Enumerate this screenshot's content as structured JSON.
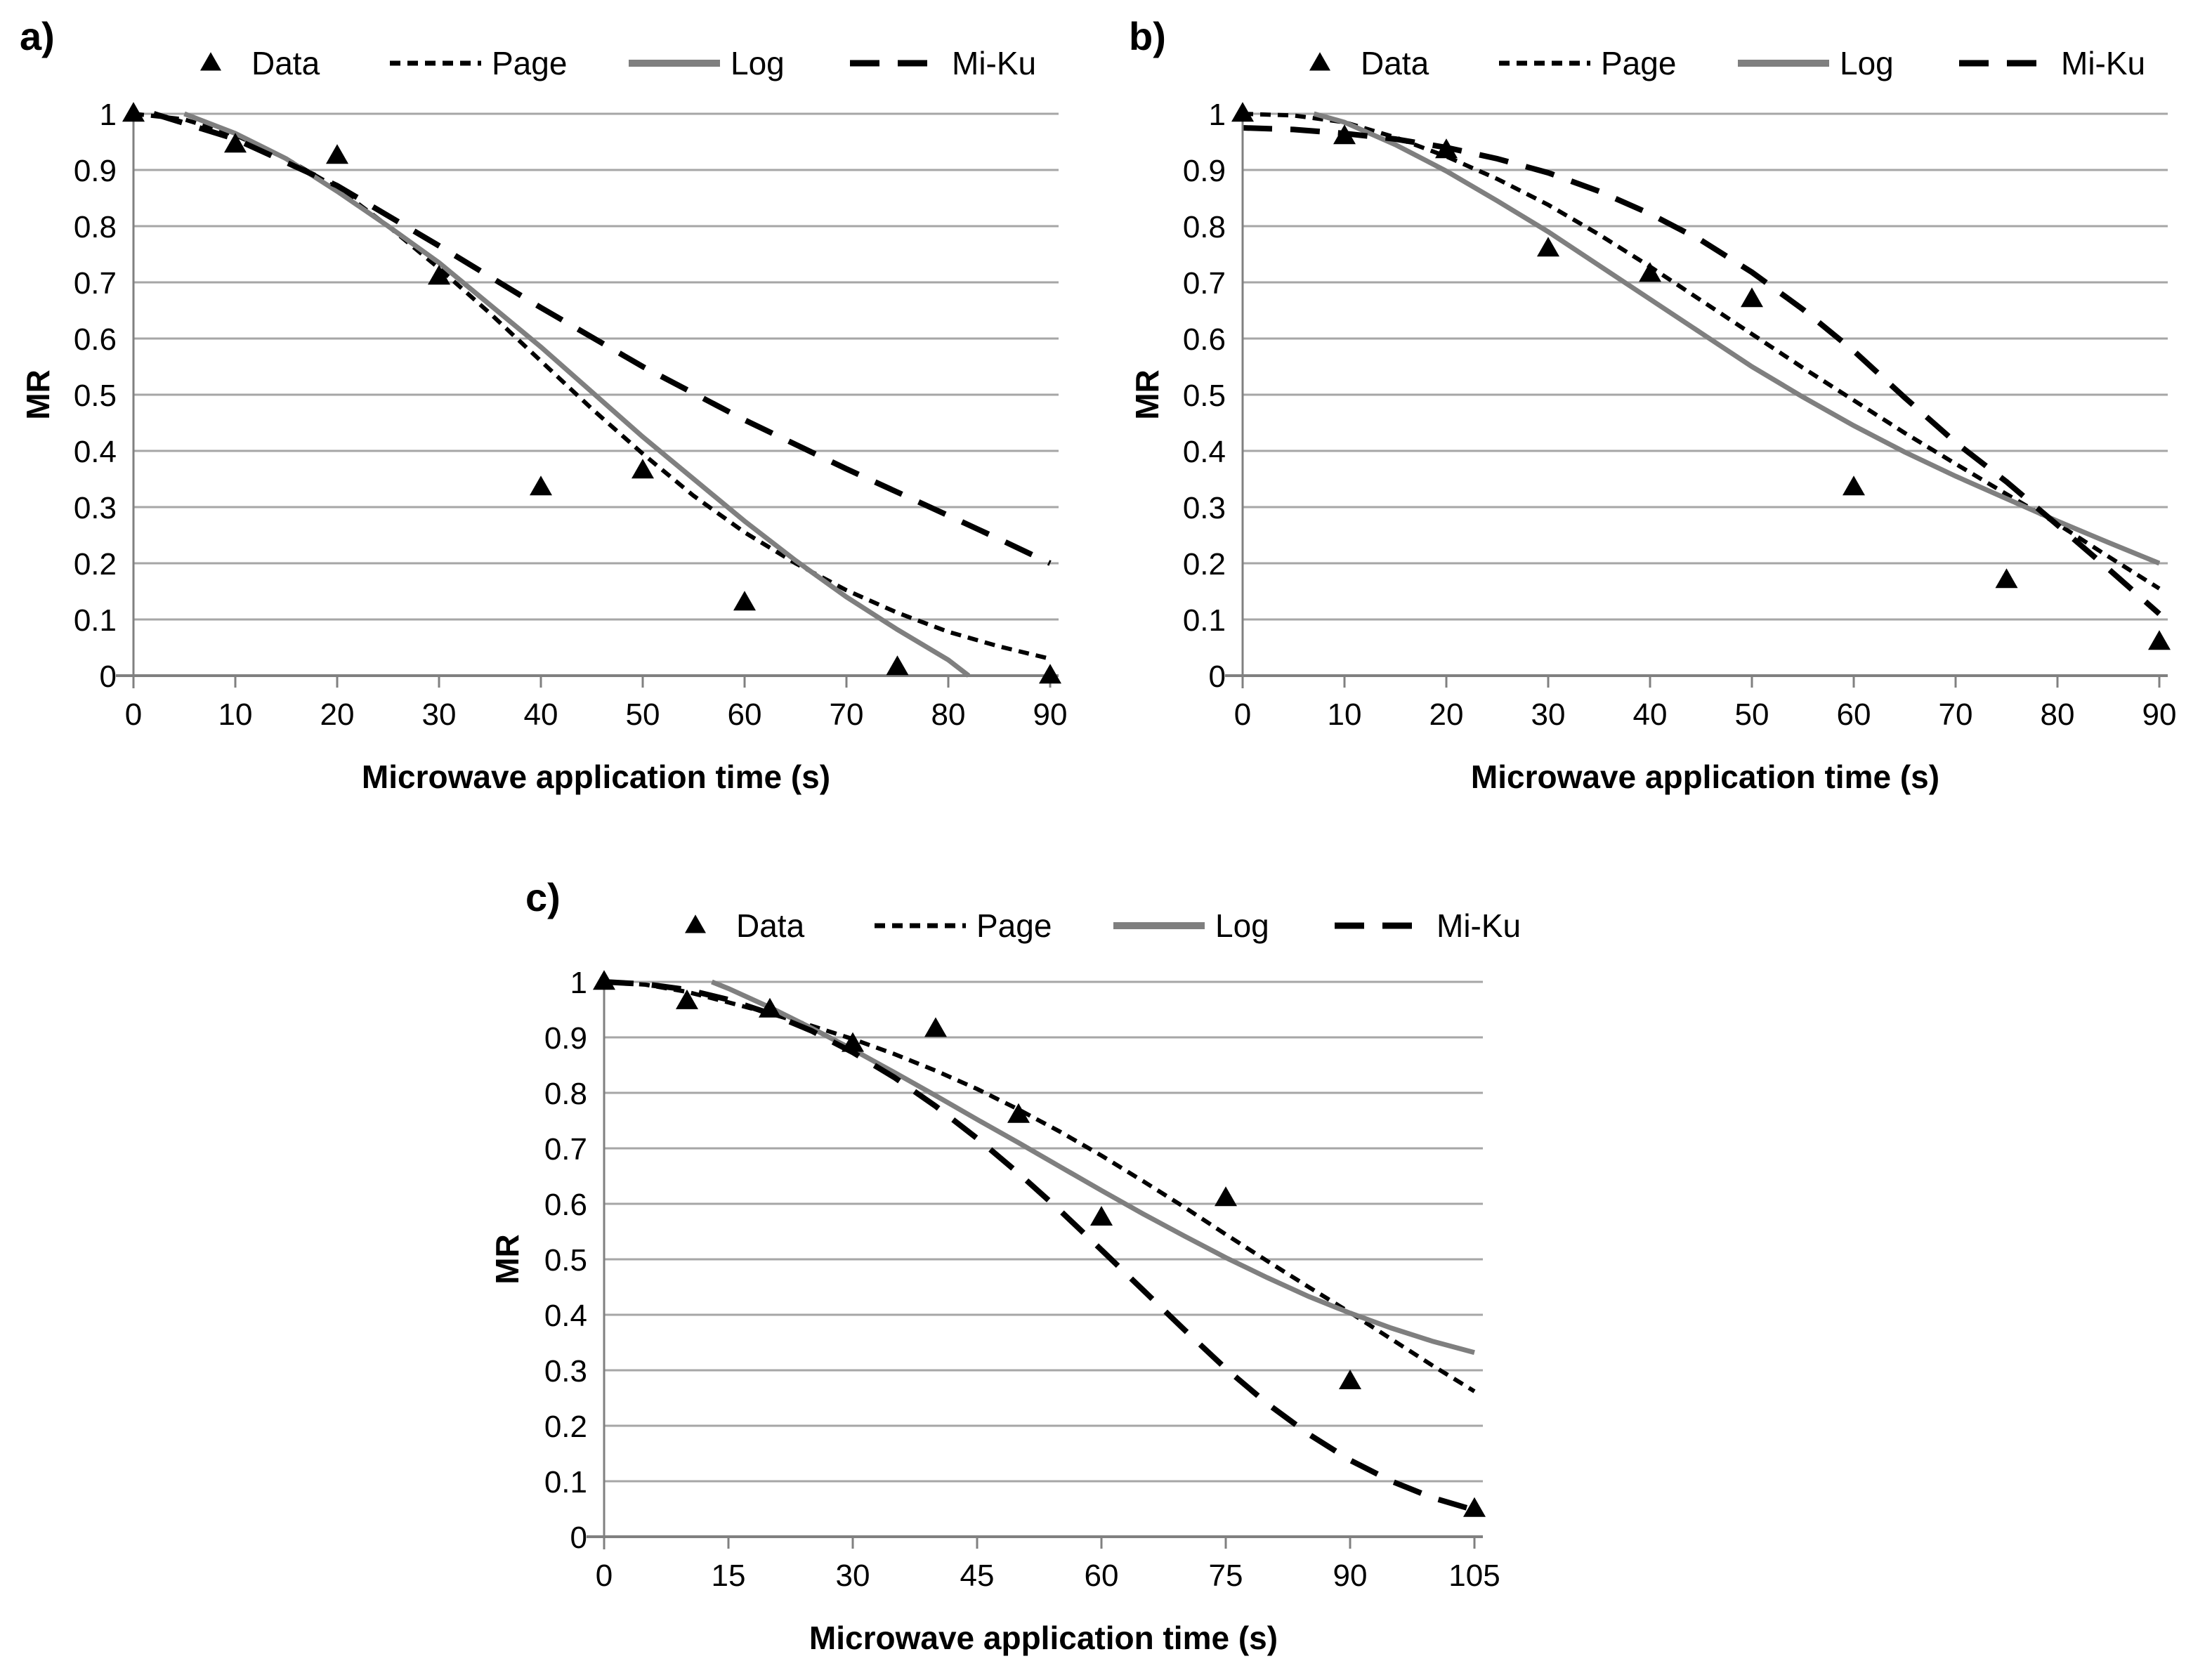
{
  "figure_background": "#ffffff",
  "colors": {
    "data_marker": "#000000",
    "page_line": "#000000",
    "log_line": "#7f7f7f",
    "miku_line": "#000000",
    "gridline": "#a6a6a6",
    "axis": "#808080",
    "text": "#000000"
  },
  "chart_data": [
    {
      "id": "a",
      "panel_label": "a)",
      "type": "scatter",
      "xlabel": "Microwave application time (s)",
      "ylabel": "MR",
      "xlim": [
        0,
        90
      ],
      "ylim": [
        0,
        1
      ],
      "x_ticks": [
        0,
        10,
        20,
        30,
        40,
        50,
        60,
        70,
        80,
        90
      ],
      "y_ticks": [
        "1",
        "0.9",
        "0.8",
        "0.7",
        "0.6",
        "0.5",
        "0.4",
        "0.3",
        "0.2",
        "0.1",
        "0"
      ],
      "grid": "horizontal",
      "legend_position": "top",
      "legend": [
        {
          "label": "Data",
          "marker": "triangle",
          "color": "#000000"
        },
        {
          "label": "Page",
          "style": "dash-short",
          "color": "#000000"
        },
        {
          "label": "Log",
          "style": "solid",
          "color": "#7f7f7f"
        },
        {
          "label": "Mi-Ku",
          "style": "dash-long",
          "color": "#000000"
        }
      ],
      "data_points": {
        "name": "Data",
        "points": [
          [
            0,
            1.0
          ],
          [
            10,
            0.945
          ],
          [
            20,
            0.925
          ],
          [
            30,
            0.71
          ],
          [
            40,
            0.335
          ],
          [
            50,
            0.365
          ],
          [
            60,
            0.13
          ],
          [
            75,
            0.015
          ],
          [
            90,
            0.0
          ]
        ]
      },
      "series": [
        {
          "name": "Page",
          "style": "dash-short",
          "color": "#000000",
          "points": [
            [
              0,
              1.0
            ],
            [
              5,
              0.99
            ],
            [
              10,
              0.962
            ],
            [
              15,
              0.92
            ],
            [
              20,
              0.868
            ],
            [
              25,
              0.8
            ],
            [
              30,
              0.725
            ],
            [
              35,
              0.645
            ],
            [
              40,
              0.56
            ],
            [
              45,
              0.475
            ],
            [
              50,
              0.395
            ],
            [
              55,
              0.32
            ],
            [
              60,
              0.255
            ],
            [
              65,
              0.2
            ],
            [
              70,
              0.152
            ],
            [
              75,
              0.112
            ],
            [
              80,
              0.078
            ],
            [
              85,
              0.052
            ],
            [
              90,
              0.03
            ]
          ]
        },
        {
          "name": "Log",
          "style": "solid",
          "color": "#7f7f7f",
          "points": [
            [
              5,
              1.0
            ],
            [
              10,
              0.965
            ],
            [
              15,
              0.92
            ],
            [
              20,
              0.862
            ],
            [
              25,
              0.8
            ],
            [
              30,
              0.735
            ],
            [
              35,
              0.66
            ],
            [
              40,
              0.585
            ],
            [
              45,
              0.505
            ],
            [
              50,
              0.425
            ],
            [
              55,
              0.35
            ],
            [
              60,
              0.275
            ],
            [
              65,
              0.205
            ],
            [
              70,
              0.14
            ],
            [
              75,
              0.082
            ],
            [
              80,
              0.028
            ],
            [
              82,
              0.0
            ]
          ]
        },
        {
          "name": "Mi-Ku",
          "style": "dash-long",
          "color": "#000000",
          "points": [
            [
              2,
              1.0
            ],
            [
              10,
              0.955
            ],
            [
              20,
              0.872
            ],
            [
              30,
              0.765
            ],
            [
              40,
              0.655
            ],
            [
              50,
              0.55
            ],
            [
              60,
              0.455
            ],
            [
              70,
              0.368
            ],
            [
              80,
              0.285
            ],
            [
              85,
              0.243
            ],
            [
              90,
              0.2
            ]
          ]
        }
      ]
    },
    {
      "id": "b",
      "panel_label": "b)",
      "type": "scatter",
      "xlabel": "Microwave application time (s)",
      "ylabel": "MR",
      "xlim": [
        0,
        90
      ],
      "ylim": [
        0,
        1
      ],
      "x_ticks": [
        0,
        10,
        20,
        30,
        40,
        50,
        60,
        70,
        80,
        90
      ],
      "y_ticks": [
        "1",
        "0.9",
        "0.8",
        "0.7",
        "0.6",
        "0.5",
        "0.4",
        "0.3",
        "0.2",
        "0.1",
        "0"
      ],
      "grid": "horizontal",
      "legend_position": "top",
      "legend": [
        {
          "label": "Data",
          "marker": "triangle",
          "color": "#000000"
        },
        {
          "label": "Page",
          "style": "dash-short",
          "color": "#000000"
        },
        {
          "label": "Log",
          "style": "solid",
          "color": "#7f7f7f"
        },
        {
          "label": "Mi-Ku",
          "style": "dash-long",
          "color": "#000000"
        }
      ],
      "data_points": {
        "name": "Data",
        "points": [
          [
            0,
            1.0
          ],
          [
            10,
            0.96
          ],
          [
            20,
            0.935
          ],
          [
            30,
            0.76
          ],
          [
            40,
            0.715
          ],
          [
            50,
            0.67
          ],
          [
            60,
            0.335
          ],
          [
            75,
            0.17
          ],
          [
            90,
            0.06
          ]
        ]
      },
      "series": [
        {
          "name": "Page",
          "style": "dash-short",
          "color": "#000000",
          "points": [
            [
              0,
              1.0
            ],
            [
              5,
              0.997
            ],
            [
              10,
              0.985
            ],
            [
              15,
              0.958
            ],
            [
              20,
              0.924
            ],
            [
              25,
              0.884
            ],
            [
              30,
              0.838
            ],
            [
              35,
              0.785
            ],
            [
              40,
              0.728
            ],
            [
              45,
              0.668
            ],
            [
              50,
              0.608
            ],
            [
              55,
              0.548
            ],
            [
              60,
              0.49
            ],
            [
              65,
              0.432
            ],
            [
              70,
              0.377
            ],
            [
              75,
              0.323
            ],
            [
              80,
              0.27
            ],
            [
              85,
              0.212
            ],
            [
              90,
              0.155
            ]
          ]
        },
        {
          "name": "Log",
          "style": "solid",
          "color": "#7f7f7f",
          "points": [
            [
              7,
              1.0
            ],
            [
              10,
              0.985
            ],
            [
              15,
              0.945
            ],
            [
              20,
              0.898
            ],
            [
              25,
              0.845
            ],
            [
              30,
              0.79
            ],
            [
              35,
              0.73
            ],
            [
              40,
              0.67
            ],
            [
              45,
              0.61
            ],
            [
              50,
              0.55
            ],
            [
              55,
              0.496
            ],
            [
              60,
              0.445
            ],
            [
              65,
              0.398
            ],
            [
              70,
              0.355
            ],
            [
              75,
              0.315
            ],
            [
              80,
              0.275
            ],
            [
              85,
              0.237
            ],
            [
              90,
              0.2
            ]
          ]
        },
        {
          "name": "Mi-Ku",
          "style": "dash-long",
          "color": "#000000",
          "points": [
            [
              0,
              0.975
            ],
            [
              5,
              0.972
            ],
            [
              10,
              0.965
            ],
            [
              15,
              0.955
            ],
            [
              20,
              0.94
            ],
            [
              25,
              0.92
            ],
            [
              30,
              0.895
            ],
            [
              35,
              0.862
            ],
            [
              40,
              0.822
            ],
            [
              45,
              0.775
            ],
            [
              50,
              0.718
            ],
            [
              55,
              0.652
            ],
            [
              60,
              0.578
            ],
            [
              65,
              0.495
            ],
            [
              70,
              0.415
            ],
            [
              75,
              0.345
            ],
            [
              80,
              0.268
            ],
            [
              85,
              0.19
            ],
            [
              90,
              0.11
            ]
          ]
        }
      ]
    },
    {
      "id": "c",
      "panel_label": "c)",
      "type": "scatter",
      "xlabel": "Microwave application time (s)",
      "ylabel": "MR",
      "xlim": [
        0,
        105
      ],
      "ylim": [
        0,
        1
      ],
      "x_ticks": [
        0,
        15,
        30,
        45,
        60,
        75,
        90,
        105
      ],
      "y_ticks": [
        "1",
        "0.9",
        "0.8",
        "0.7",
        "0.6",
        "0.5",
        "0.4",
        "0.3",
        "0.2",
        "0.1",
        "0"
      ],
      "grid": "horizontal",
      "legend_position": "top",
      "legend": [
        {
          "label": "Data",
          "marker": "triangle",
          "color": "#000000"
        },
        {
          "label": "Page",
          "style": "dash-short",
          "color": "#000000"
        },
        {
          "label": "Log",
          "style": "solid",
          "color": "#7f7f7f"
        },
        {
          "label": "Mi-Ku",
          "style": "dash-long",
          "color": "#000000"
        }
      ],
      "data_points": {
        "name": "Data",
        "points": [
          [
            0,
            1.0
          ],
          [
            10,
            0.965
          ],
          [
            20,
            0.95
          ],
          [
            30,
            0.888
          ],
          [
            40,
            0.915
          ],
          [
            50,
            0.76
          ],
          [
            60,
            0.575
          ],
          [
            75,
            0.61
          ],
          [
            90,
            0.28
          ],
          [
            105,
            0.05
          ]
        ]
      },
      "series": [
        {
          "name": "Page",
          "style": "dash-short",
          "color": "#000000",
          "points": [
            [
              0,
              1.0
            ],
            [
              5,
              0.995
            ],
            [
              10,
              0.982
            ],
            [
              15,
              0.963
            ],
            [
              20,
              0.943
            ],
            [
              25,
              0.921
            ],
            [
              30,
              0.897
            ],
            [
              35,
              0.87
            ],
            [
              40,
              0.84
            ],
            [
              45,
              0.807
            ],
            [
              50,
              0.77
            ],
            [
              55,
              0.73
            ],
            [
              60,
              0.687
            ],
            [
              65,
              0.641
            ],
            [
              70,
              0.594
            ],
            [
              75,
              0.545
            ],
            [
              80,
              0.497
            ],
            [
              85,
              0.45
            ],
            [
              90,
              0.404
            ],
            [
              95,
              0.356
            ],
            [
              100,
              0.308
            ],
            [
              105,
              0.262
            ]
          ]
        },
        {
          "name": "Log",
          "style": "solid",
          "color": "#7f7f7f",
          "points": [
            [
              13,
              1.0
            ],
            [
              15,
              0.988
            ],
            [
              20,
              0.954
            ],
            [
              25,
              0.917
            ],
            [
              30,
              0.878
            ],
            [
              35,
              0.837
            ],
            [
              40,
              0.795
            ],
            [
              45,
              0.752
            ],
            [
              50,
              0.71
            ],
            [
              55,
              0.667
            ],
            [
              60,
              0.624
            ],
            [
              65,
              0.582
            ],
            [
              70,
              0.542
            ],
            [
              75,
              0.503
            ],
            [
              80,
              0.467
            ],
            [
              85,
              0.433
            ],
            [
              90,
              0.403
            ],
            [
              95,
              0.376
            ],
            [
              100,
              0.352
            ],
            [
              105,
              0.332
            ]
          ]
        },
        {
          "name": "Mi-Ku",
          "style": "dash-long",
          "color": "#000000",
          "points": [
            [
              0,
              1.0
            ],
            [
              5,
              0.996
            ],
            [
              10,
              0.986
            ],
            [
              15,
              0.968
            ],
            [
              20,
              0.943
            ],
            [
              25,
              0.912
            ],
            [
              30,
              0.873
            ],
            [
              35,
              0.828
            ],
            [
              40,
              0.776
            ],
            [
              45,
              0.718
            ],
            [
              50,
              0.655
            ],
            [
              55,
              0.588
            ],
            [
              60,
              0.517
            ],
            [
              65,
              0.445
            ],
            [
              70,
              0.373
            ],
            [
              75,
              0.303
            ],
            [
              80,
              0.24
            ],
            [
              85,
              0.185
            ],
            [
              90,
              0.138
            ],
            [
              95,
              0.1
            ],
            [
              100,
              0.07
            ],
            [
              105,
              0.048
            ]
          ]
        }
      ]
    }
  ]
}
